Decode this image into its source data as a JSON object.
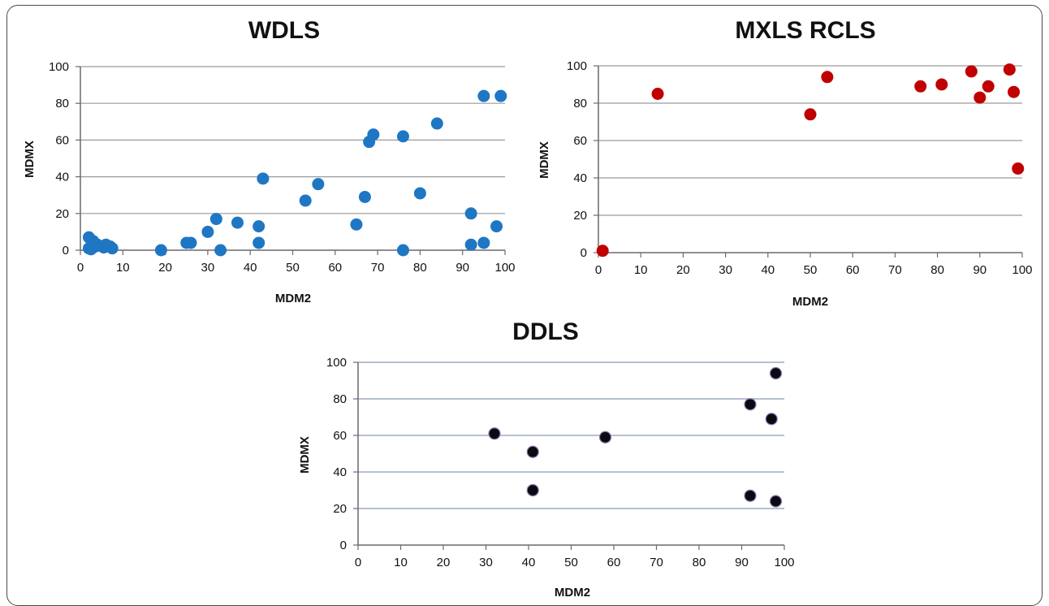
{
  "chart_data": [
    {
      "type": "scatter",
      "title": "WDLS",
      "xlabel": "MDM2",
      "ylabel": "MDMX",
      "xlim": [
        0,
        100
      ],
      "ylim": [
        0,
        100
      ],
      "xticks": [
        "0",
        "10",
        "20",
        "30",
        "40",
        "50",
        "60",
        "70",
        "80",
        "90",
        "100"
      ],
      "yticks": [
        "0",
        "20",
        "40",
        "60",
        "80",
        "100"
      ],
      "grid": "horizontal",
      "colors": {
        "marker": "#1f77c4",
        "grid": "#9a9a9a"
      },
      "series": [
        {
          "x": [
            2,
            2,
            2.5,
            3,
            3.5,
            4,
            5.5,
            6,
            7,
            7.5,
            19,
            25,
            26,
            30,
            32,
            33,
            37,
            42,
            42,
            43,
            53,
            56,
            65,
            67,
            68,
            69,
            76,
            76,
            80,
            84,
            92,
            92,
            95,
            95,
            98,
            99
          ],
          "y": [
            1,
            7,
            0.5,
            5,
            2,
            3,
            1.5,
            3,
            2,
            1,
            0,
            4,
            4,
            10,
            17,
            0,
            15,
            13,
            4,
            39,
            27,
            36,
            14,
            29,
            59,
            63,
            62,
            0,
            31,
            69,
            20,
            3,
            4,
            84,
            13,
            84
          ]
        }
      ]
    },
    {
      "type": "scatter",
      "title": "MXLS RCLS",
      "xlabel": "MDM2",
      "ylabel": "MDMX",
      "xlim": [
        0,
        100
      ],
      "ylim": [
        0,
        100
      ],
      "xticks": [
        "0",
        "10",
        "20",
        "30",
        "40",
        "50",
        "60",
        "70",
        "80",
        "90",
        "100"
      ],
      "yticks": [
        "0",
        "20",
        "40",
        "60",
        "80",
        "100"
      ],
      "grid": "horizontal",
      "colors": {
        "marker": "#c00000",
        "grid": "#9a9a9a"
      },
      "series": [
        {
          "x": [
            1,
            14,
            50,
            54,
            76,
            81,
            88,
            90,
            92,
            97,
            98,
            99
          ],
          "y": [
            1,
            85,
            74,
            94,
            89,
            90,
            97,
            83,
            89,
            98,
            86,
            45
          ]
        }
      ]
    },
    {
      "type": "scatter",
      "title": "DDLS",
      "xlabel": "MDM2",
      "ylabel": "MDMX",
      "xlim": [
        0,
        100
      ],
      "ylim": [
        0,
        100
      ],
      "xticks": [
        "0",
        "10",
        "20",
        "30",
        "40",
        "50",
        "60",
        "70",
        "80",
        "90",
        "100"
      ],
      "yticks": [
        "0",
        "20",
        "40",
        "60",
        "80",
        "100"
      ],
      "grid": "horizontal",
      "colors": {
        "marker": "#0a0a12",
        "marker_stroke": "#8a7ab0",
        "grid": "#8a9ab8"
      },
      "series": [
        {
          "x": [
            32,
            41,
            41,
            58,
            92,
            92,
            97,
            98,
            98
          ],
          "y": [
            61,
            51,
            30,
            59,
            77,
            27,
            69,
            94,
            24
          ]
        }
      ]
    }
  ]
}
